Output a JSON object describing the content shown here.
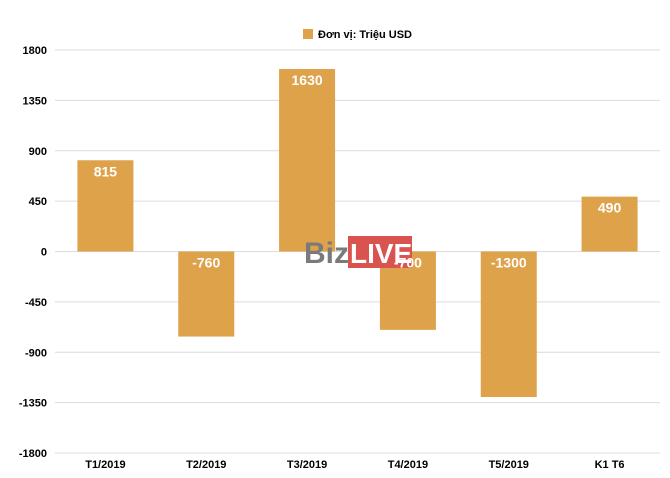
{
  "chart_data": {
    "type": "bar",
    "categories": [
      "T1/2019",
      "T2/2019",
      "T3/2019",
      "T4/2019",
      "T5/2019",
      "K1 T6"
    ],
    "series": [
      {
        "name": "Đơn vị: Triệu USD",
        "values": [
          815,
          -760,
          1630,
          -700,
          -1300,
          490
        ],
        "color": "#dea24a"
      }
    ],
    "data_labels": [
      "815",
      "-760",
      "1630",
      "-700",
      "-1300",
      "490"
    ],
    "yticks": [
      1800,
      1350,
      900,
      450,
      0,
      -450,
      -900,
      -1350,
      -1800
    ],
    "ylim": [
      -1800,
      1800
    ],
    "grid": true,
    "legend_position": "top-center",
    "title": "",
    "xlabel": "",
    "ylabel": ""
  },
  "watermark": {
    "part1": "Biz",
    "part2": "LIVE",
    "color2": "#d9534f"
  }
}
